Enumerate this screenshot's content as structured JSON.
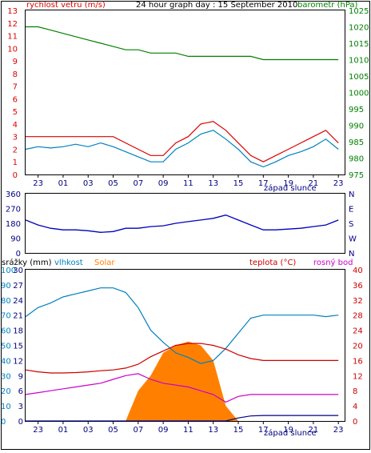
{
  "chart_data": [
    {
      "type": "line",
      "title": "24 hour graph day : 15 September 2010",
      "left_label": "rychlost vetru (m/s)",
      "right_label": "barometr (hPa)",
      "x_ticks": [
        "23",
        "01",
        "03",
        "05",
        "07",
        "09",
        "11",
        "13",
        "15",
        "17",
        "19",
        "21",
        "23"
      ],
      "x_note": "západ slunce",
      "ylim_left": [
        0,
        13
      ],
      "yticks_left": [
        "0",
        "1",
        "2",
        "3",
        "4",
        "5",
        "6",
        "7",
        "8",
        "9",
        "10",
        "11",
        "12",
        "13"
      ],
      "ylim_right": [
        975,
        1025
      ],
      "yticks_right": [
        "975",
        "980",
        "985",
        "990",
        "995",
        "1000",
        "1005",
        "1010",
        "1015",
        "1020",
        "1025"
      ],
      "x_hours": [
        22,
        23,
        24,
        25,
        26,
        27,
        28,
        29,
        30,
        31,
        32,
        33,
        34,
        35,
        36,
        37,
        38,
        39,
        40,
        41,
        42,
        43,
        44,
        45,
        46,
        47
      ],
      "series": [
        {
          "color": "#dd0000",
          "axis": "left",
          "values": [
            3,
            3,
            3,
            3,
            3,
            3,
            3,
            3,
            2.5,
            2,
            1.5,
            1.5,
            2.5,
            3,
            4,
            4.2,
            3.5,
            2.5,
            1.5,
            1,
            1.5,
            2,
            2.5,
            3,
            3.5,
            2.5
          ]
        },
        {
          "color": "#0080c0",
          "axis": "left",
          "values": [
            2,
            2.2,
            2.1,
            2.2,
            2.4,
            2.2,
            2.5,
            2.2,
            1.8,
            1.4,
            1,
            1,
            2,
            2.5,
            3.2,
            3.5,
            2.8,
            2,
            1,
            0.6,
            1,
            1.5,
            1.8,
            2.2,
            2.8,
            2
          ]
        },
        {
          "color": "#008000",
          "axis": "right",
          "values": [
            1020,
            1020,
            1019,
            1018,
            1017,
            1016,
            1015,
            1014,
            1013,
            1013,
            1012,
            1012,
            1012,
            1011,
            1011,
            1011,
            1011,
            1011,
            1011,
            1010,
            1010,
            1010,
            1010,
            1010,
            1010,
            1010
          ]
        }
      ]
    },
    {
      "type": "line",
      "ylim": [
        0,
        360
      ],
      "yticks": [
        "0",
        "90",
        "180",
        "270",
        "360"
      ],
      "right_labels": [
        "N",
        "W",
        "S",
        "E",
        "N"
      ],
      "x_hours": [
        22,
        23,
        24,
        25,
        26,
        27,
        28,
        29,
        30,
        31,
        32,
        33,
        34,
        35,
        36,
        37,
        38,
        39,
        40,
        41,
        42,
        43,
        44,
        45,
        46,
        47
      ],
      "series": [
        {
          "color": "#0000bb",
          "values": [
            200,
            170,
            150,
            140,
            140,
            135,
            125,
            130,
            150,
            150,
            160,
            165,
            180,
            190,
            200,
            210,
            230,
            200,
            170,
            140,
            140,
            145,
            150,
            160,
            170,
            200
          ]
        }
      ]
    },
    {
      "type": "line",
      "legend": [
        {
          "label": "srážky (mm)",
          "color": "#000000"
        },
        {
          "label": "vlhkost",
          "color": "#0080c0"
        },
        {
          "label": "Solar",
          "color": "#ff8000"
        },
        {
          "label": "teplota (°C)",
          "color": "#cc0000"
        },
        {
          "label": "rosný bod",
          "color": "#cc00cc"
        }
      ],
      "x_ticks": [
        "23",
        "01",
        "03",
        "05",
        "07",
        "09",
        "11",
        "13",
        "15",
        "17",
        "19",
        "21",
        "23"
      ],
      "x_note": "západ slunce",
      "ylim_left_humidity": [
        0,
        100
      ],
      "yticks_left_humidity": [
        "0",
        "10",
        "20",
        "30",
        "40",
        "50",
        "60",
        "70",
        "80",
        "90",
        "100"
      ],
      "ylim_left_rain": [
        0,
        30
      ],
      "yticks_left_rain": [
        "0",
        "3",
        "6",
        "9",
        "12",
        "15",
        "18",
        "21",
        "24",
        "27",
        "30"
      ],
      "ylim_right": [
        0,
        40
      ],
      "yticks_right": [
        "0",
        "4",
        "8",
        "12",
        "16",
        "20",
        "24",
        "28",
        "32",
        "36",
        "40"
      ],
      "x_hours": [
        22,
        23,
        24,
        25,
        26,
        27,
        28,
        29,
        30,
        31,
        32,
        33,
        34,
        35,
        36,
        37,
        38,
        39,
        40,
        41,
        42,
        43,
        44,
        45,
        46,
        47
      ],
      "series": [
        {
          "name": "vlhkost",
          "color": "#0080c0",
          "axis": "humidity",
          "values": [
            69,
            75,
            78,
            82,
            84,
            86,
            88,
            88,
            85,
            75,
            60,
            52,
            45,
            42,
            38,
            40,
            48,
            58,
            68,
            70,
            70,
            70,
            70,
            70,
            69,
            70
          ]
        },
        {
          "name": "teplota (°C)",
          "color": "#cc0000",
          "axis": "right",
          "values": [
            13.5,
            13,
            12.7,
            12.7,
            12.8,
            13,
            13.3,
            13.5,
            14,
            15,
            17,
            18.5,
            20,
            20.5,
            20.5,
            20,
            19,
            17.5,
            16.5,
            16,
            16,
            16,
            16,
            16,
            16,
            16
          ]
        },
        {
          "name": "rosný bod",
          "color": "#cc00cc",
          "axis": "right",
          "values": [
            7,
            7.5,
            8,
            8.5,
            9,
            9.5,
            10,
            11,
            12,
            12.5,
            11,
            10,
            9.5,
            9,
            8,
            7,
            5,
            6.5,
            7,
            7,
            7,
            7,
            7,
            7,
            7,
            7
          ]
        },
        {
          "name": "Solar",
          "color": "#ff8000",
          "axis": "right",
          "values": [
            0,
            0,
            0,
            0,
            0,
            0,
            0,
            0,
            0,
            8,
            12,
            18,
            20,
            21,
            20,
            16,
            4,
            0,
            0,
            0,
            0,
            0,
            0,
            0,
            0,
            0
          ]
        },
        {
          "name": "srážky (mm)",
          "color": "#000080",
          "axis": "rain",
          "values": [
            0,
            0,
            0,
            0,
            0,
            0,
            0,
            0,
            0,
            0,
            0,
            0,
            0,
            0,
            0,
            0,
            0,
            0.6,
            1,
            1.1,
            1.1,
            1.1,
            1.1,
            1.1,
            1.1,
            1.1
          ]
        }
      ]
    }
  ]
}
